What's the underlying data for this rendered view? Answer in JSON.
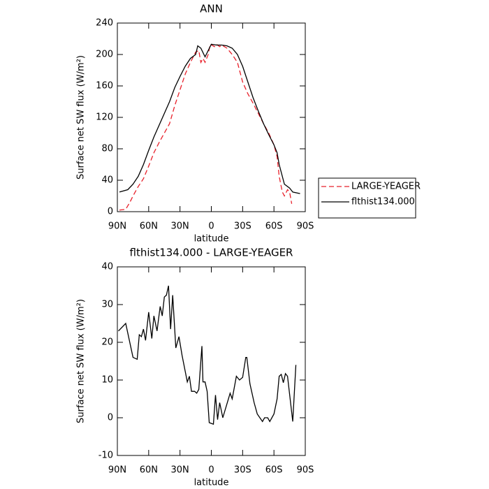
{
  "chart_data": [
    {
      "type": "line",
      "title": "ANN",
      "x_label": "latitude",
      "y_label": "Surface net SW flux (W/m²)",
      "xlim": [
        90,
        -90
      ],
      "xticks": [
        {
          "value": 90,
          "label": "90N"
        },
        {
          "value": 60,
          "label": "60N"
        },
        {
          "value": 30,
          "label": "30N"
        },
        0,
        {
          "value": -30,
          "label": "30S"
        },
        {
          "value": -60,
          "label": "60S"
        },
        {
          "value": -90,
          "label": "90S"
        }
      ],
      "ylim": [
        0,
        240
      ],
      "yticks": [
        0,
        40,
        80,
        120,
        160,
        200,
        240
      ],
      "legend": "right",
      "series": [
        {
          "name": "LARGE-YEAGER",
          "color": "#e8202a",
          "dashed": true,
          "x": [
            88,
            82,
            78,
            75,
            70,
            65,
            60,
            55,
            50,
            45,
            40,
            35,
            30,
            25,
            20,
            15,
            12,
            10,
            8,
            6,
            3,
            1,
            -3,
            -5,
            -8,
            -10,
            -15,
            -20,
            -25,
            -30,
            -35,
            -40,
            -45,
            -50,
            -55,
            -60,
            -63,
            -65,
            -68,
            -70,
            -73,
            -75,
            -77
          ],
          "values": [
            2,
            3,
            12,
            20,
            32,
            42,
            58,
            75,
            88,
            100,
            112,
            135,
            155,
            175,
            190,
            203,
            205,
            190,
            195,
            190,
            200,
            213,
            210,
            213,
            210,
            212,
            208,
            200,
            190,
            165,
            150,
            138,
            125,
            112,
            100,
            85,
            70,
            45,
            25,
            20,
            28,
            25,
            10
          ]
        },
        {
          "name": "flthist134.000",
          "color": "#000000",
          "dashed": false,
          "x": [
            88,
            80,
            75,
            70,
            65,
            60,
            55,
            50,
            45,
            40,
            35,
            30,
            25,
            20,
            15,
            13,
            10,
            6,
            3,
            0,
            -5,
            -10,
            -15,
            -20,
            -25,
            -30,
            -35,
            -40,
            -45,
            -50,
            -55,
            -60,
            -63,
            -65,
            -68,
            -70,
            -75,
            -78,
            -85
          ],
          "values": [
            25,
            28,
            35,
            45,
            60,
            78,
            95,
            110,
            125,
            140,
            158,
            172,
            185,
            195,
            200,
            211,
            208,
            197,
            205,
            213,
            212,
            212,
            211,
            208,
            200,
            185,
            165,
            145,
            128,
            112,
            98,
            85,
            75,
            60,
            45,
            35,
            30,
            25,
            23
          ]
        }
      ]
    },
    {
      "type": "line",
      "title": "flthist134.000 - LARGE-YEAGER",
      "x_label": "latitude",
      "y_label": "Surface net SW flux (W/m²)",
      "xlim": [
        90,
        -90
      ],
      "xticks": [
        {
          "value": 90,
          "label": "90N"
        },
        {
          "value": 60,
          "label": "60N"
        },
        {
          "value": 30,
          "label": "30N"
        },
        0,
        {
          "value": -30,
          "label": "30S"
        },
        {
          "value": -60,
          "label": "60S"
        },
        {
          "value": -90,
          "label": "90S"
        }
      ],
      "ylim": [
        -10,
        40
      ],
      "yticks": [
        -10,
        0,
        10,
        20,
        30,
        40
      ],
      "series": [
        {
          "color": "#000000",
          "dashed": false,
          "x": [
            89,
            82,
            75,
            71,
            69,
            67,
            65,
            63,
            60,
            57,
            55,
            52,
            49,
            47,
            45,
            43,
            41,
            39,
            37,
            34,
            31,
            28,
            23,
            21,
            19,
            16,
            14,
            12,
            9,
            8,
            6,
            4,
            2,
            -2,
            -4,
            -6,
            -8,
            -11,
            -18,
            -20,
            -24,
            -27,
            -30,
            -33,
            -34,
            -37,
            -41,
            -44,
            -49,
            -51,
            -54,
            -56,
            -60,
            -63,
            -65,
            -67,
            -69,
            -71,
            -73,
            -78,
            -81
          ],
          "values": [
            23,
            25,
            16,
            15.5,
            22,
            21.5,
            23.5,
            20.5,
            28,
            21,
            27,
            23,
            29.5,
            27,
            32,
            32.5,
            35,
            23.5,
            32.5,
            18.5,
            21.5,
            16.5,
            9.5,
            11,
            7,
            7,
            6.5,
            7.5,
            19,
            9.5,
            9.5,
            7,
            -1.3,
            -1.7,
            6,
            -0.5,
            4,
            0,
            6.5,
            5,
            11,
            10,
            10.7,
            16,
            16,
            9,
            4,
            1,
            -1,
            0,
            0,
            -1,
            1,
            5,
            11,
            11.5,
            9.3,
            11.7,
            11,
            -1,
            14
          ]
        }
      ]
    }
  ]
}
